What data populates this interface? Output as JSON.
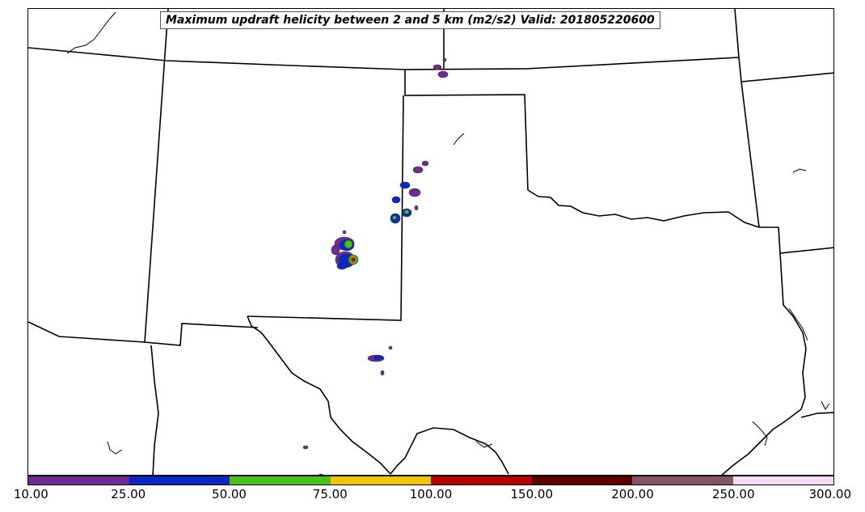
{
  "map": {
    "title": "Maximum updraft helicity between 2 and 5 km (m2/s2) Valid: 201805220600",
    "units": "m2/s2",
    "valid_time": "201805220600",
    "boundaries": "US state borders and coastline (Texas, Oklahoma, New Mexico, Colorado, Kansas, Arizona, Arkansas, Louisiana)"
  },
  "colorbar": {
    "tick_labels": [
      "10.00",
      "25.00",
      "50.00",
      "75.00",
      "100.00",
      "150.00",
      "200.00",
      "250.00",
      "300.00"
    ],
    "colors": [
      "#6f2a96",
      "#0a28c8",
      "#48c414",
      "#f5c400",
      "#b80000",
      "#5a0000",
      "#8a5266",
      "#f5dcf5"
    ]
  },
  "colors": {
    "border": "#000000",
    "purple": "#6f2a96",
    "blue": "#0a28c8",
    "green": "#48c414",
    "yellow": "#f5c400",
    "red": "#b80000"
  }
}
